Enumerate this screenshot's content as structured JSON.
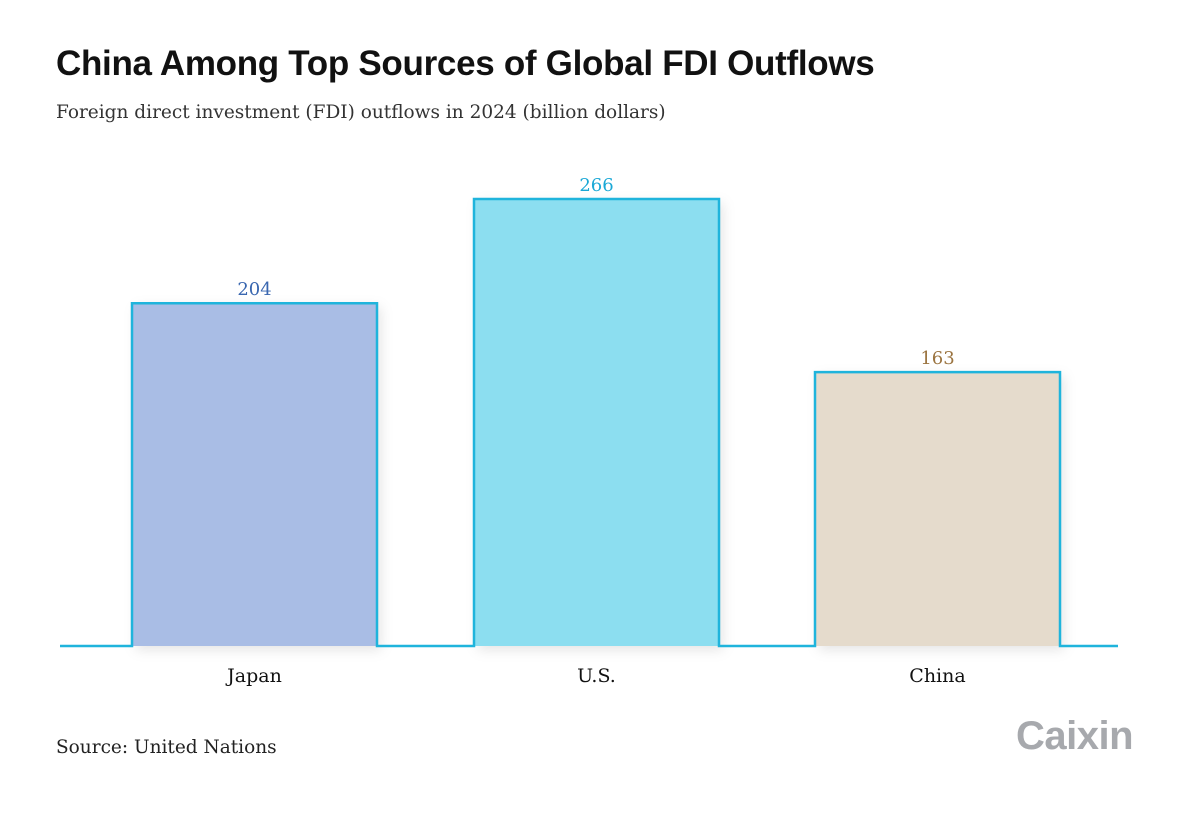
{
  "title": "China Among Top Sources of Global FDI Outflows",
  "subtitle": "Foreign direct investment (FDI) outflows in 2024 (billion dollars)",
  "source": "Source: United Nations",
  "brand": "Caixin",
  "colors": {
    "outline": "#1fb4dc",
    "bar_fills": [
      "#a9bde5",
      "#8cdef0",
      "#e5dbcc"
    ],
    "value_label_colors": [
      "#3a67b0",
      "#1aa8d6",
      "#9b7440"
    ]
  },
  "chart_data": {
    "type": "bar",
    "title": "China Among Top Sources of Global FDI Outflows",
    "subtitle": "Foreign direct investment (FDI) outflows in 2024 (billion dollars)",
    "categories": [
      "Japan",
      "U.S.",
      "China"
    ],
    "values": [
      204,
      266,
      163
    ],
    "xlabel": "",
    "ylabel": "",
    "ylim": [
      0,
      266
    ],
    "grid": false,
    "legend": "none"
  }
}
